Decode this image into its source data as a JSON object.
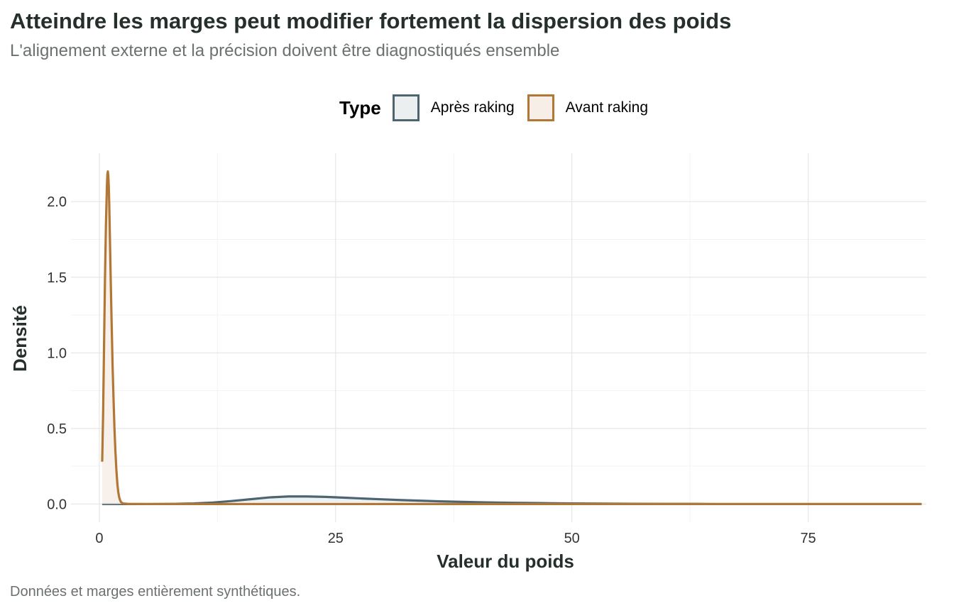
{
  "title": "Atteindre les marges peut modifier fortement la dispersion des poids",
  "subtitle": "L'alignement externe et la précision doivent être diagnostiqués ensemble",
  "caption": "Données et marges entièrement synthétiques.",
  "legend": {
    "title": "Type",
    "items": [
      {
        "label": "Après raking",
        "stroke": "#4e6470",
        "fill": "#ebeff0"
      },
      {
        "label": "Avant raking",
        "stroke": "#b27635",
        "fill": "#f7eee8"
      }
    ]
  },
  "chart_data": {
    "type": "area",
    "xlabel": "Valeur du poids",
    "ylabel": "Densité",
    "xlim": [
      -3,
      87.5
    ],
    "ylim": [
      -0.12,
      2.32
    ],
    "x_ticks": [
      0,
      25,
      50,
      75
    ],
    "y_ticks": [
      0.0,
      0.5,
      1.0,
      1.5,
      2.0
    ],
    "x_tick_labels": [
      "0",
      "25",
      "50",
      "75"
    ],
    "y_tick_labels": [
      "0.0",
      "0.5",
      "1.0",
      "1.5",
      "2.0"
    ],
    "grid": true,
    "legend_position": "top",
    "series": [
      {
        "name": "Après raking",
        "color": "#4e6470",
        "fill": "#ebeff0",
        "x": [
          0.3,
          2,
          5,
          8,
          10,
          12,
          14,
          16,
          18,
          20,
          22,
          24,
          26,
          28,
          30,
          32,
          34,
          36,
          38,
          40,
          42,
          44,
          46,
          48,
          50,
          55,
          60,
          63,
          65,
          70,
          87
        ],
        "y": [
          0.0,
          0.0,
          0.0,
          0.001,
          0.004,
          0.01,
          0.02,
          0.032,
          0.044,
          0.05,
          0.05,
          0.047,
          0.042,
          0.036,
          0.031,
          0.026,
          0.022,
          0.018,
          0.015,
          0.012,
          0.01,
          0.008,
          0.007,
          0.005,
          0.004,
          0.002,
          0.001,
          0.001,
          0.0,
          0.0,
          0.0
        ]
      },
      {
        "name": "Avant raking",
        "color": "#b27635",
        "fill": "#f7eee8",
        "x": [
          0.3,
          0.4,
          0.5,
          0.6,
          0.7,
          0.8,
          0.85,
          0.9,
          0.95,
          1.0,
          1.05,
          1.1,
          1.2,
          1.3,
          1.4,
          1.5,
          1.6,
          1.7,
          1.8,
          1.9,
          2.0,
          2.1,
          2.2,
          2.3,
          2.5,
          3.0,
          5,
          10,
          20,
          40,
          60,
          87
        ],
        "y": [
          0.28,
          0.6,
          1.05,
          1.5,
          1.85,
          2.1,
          2.18,
          2.2,
          2.17,
          2.1,
          1.98,
          1.82,
          1.5,
          1.2,
          0.92,
          0.7,
          0.5,
          0.35,
          0.23,
          0.14,
          0.08,
          0.045,
          0.025,
          0.012,
          0.004,
          0.001,
          0.0,
          0.0,
          0.0,
          0.0,
          0.0,
          0.0
        ]
      }
    ]
  }
}
